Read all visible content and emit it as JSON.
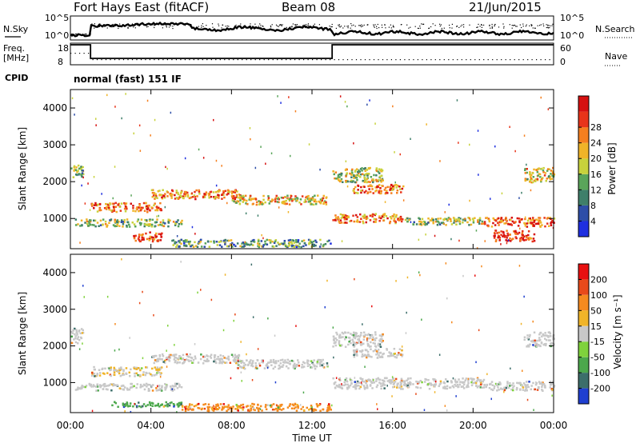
{
  "header": {
    "title": "Fort Hays East (fitACF)",
    "beam": "Beam 08",
    "date": "21/Jun/2015"
  },
  "top_panel": {
    "left_label_1": "N.Sky",
    "left_label_2": "Freq.",
    "left_label_2_unit": "[MHz]",
    "left_label_3": "CPID",
    "right_label_1": "N.Search",
    "right_label_2": "Nave",
    "nsky_ticks": [
      "10^5",
      "10^0"
    ],
    "freq_ticks": [
      "18",
      "8"
    ],
    "nsearch_ticks": [
      "10^5",
      "10^0"
    ],
    "nave_ticks": [
      "60",
      "0"
    ],
    "cpid_text": "normal (fast) 151 IF"
  },
  "chart_data": [
    {
      "type": "heatmap",
      "name": "power",
      "ylabel": "Slant Range [km]",
      "yticks": [
        "1000",
        "2000",
        "3000",
        "4000"
      ],
      "colorbar_label": "Power [dB]",
      "colorbar_ticks": [
        "4",
        "8",
        "12",
        "16",
        "20",
        "24",
        "28"
      ],
      "colorbar_colors": [
        "#1f2fe0",
        "#2e4ea8",
        "#3f7f6a",
        "#5aa55a",
        "#c8d23c",
        "#f0b428",
        "#f57f1f",
        "#e8341a",
        "#d61010"
      ],
      "regions": [
        {
          "t": [
            0.0,
            0.6
          ],
          "r": [
            2100,
            2500
          ],
          "level": 0.45
        },
        {
          "t": [
            1.0,
            4.5
          ],
          "r": [
            1200,
            1450
          ],
          "level": 0.75
        },
        {
          "t": [
            4.0,
            8.5
          ],
          "r": [
            1550,
            1800
          ],
          "level": 0.7
        },
        {
          "t": [
            8.0,
            12.8
          ],
          "r": [
            1400,
            1650
          ],
          "level": 0.6
        },
        {
          "t": [
            0.2,
            5.5
          ],
          "r": [
            800,
            1000
          ],
          "level": 0.45
        },
        {
          "t": [
            5.0,
            12.9
          ],
          "r": [
            250,
            450
          ],
          "level": 0.35
        },
        {
          "t": [
            3.0,
            4.5
          ],
          "r": [
            400,
            650
          ],
          "level": 0.85
        },
        {
          "t": [
            13.0,
            15.5
          ],
          "r": [
            2000,
            2400
          ],
          "level": 0.5
        },
        {
          "t": [
            14.0,
            16.5
          ],
          "r": [
            1700,
            1950
          ],
          "level": 0.75
        },
        {
          "t": [
            13.0,
            16.5
          ],
          "r": [
            900,
            1150
          ],
          "level": 0.7
        },
        {
          "t": [
            16.5,
            20.5
          ],
          "r": [
            850,
            1050
          ],
          "level": 0.45
        },
        {
          "t": [
            20.5,
            24.0
          ],
          "r": [
            800,
            1050
          ],
          "level": 0.8
        },
        {
          "t": [
            21.0,
            23.0
          ],
          "r": [
            400,
            700
          ],
          "level": 0.9
        },
        {
          "t": [
            22.5,
            24.0
          ],
          "r": [
            2000,
            2400
          ],
          "level": 0.55
        }
      ]
    },
    {
      "type": "heatmap",
      "name": "velocity",
      "ylabel": "Slant Range [km]",
      "yticks": [
        "1000",
        "2000",
        "3000",
        "4000"
      ],
      "colorbar_label": "Velocity [m s⁻¹]",
      "colorbar_ticks": [
        "200",
        "100",
        "50",
        "15",
        "-15",
        "-50",
        "-100",
        "-200"
      ],
      "colorbar_colors": [
        "#1f3fd0",
        "#3c6e6a",
        "#4ca84c",
        "#7fd23c",
        "#c8c8c8",
        "#f0b428",
        "#f58a1f",
        "#e84a1a",
        "#e81010"
      ],
      "regions": [
        {
          "t": [
            0.0,
            0.6
          ],
          "r": [
            2100,
            2500
          ],
          "level": 0.5
        },
        {
          "t": [
            1.0,
            4.5
          ],
          "r": [
            1200,
            1450
          ],
          "level": 0.55
        },
        {
          "t": [
            4.0,
            8.5
          ],
          "r": [
            1550,
            1800
          ],
          "level": 0.5
        },
        {
          "t": [
            8.0,
            12.8
          ],
          "r": [
            1400,
            1650
          ],
          "level": 0.5
        },
        {
          "t": [
            0.2,
            5.5
          ],
          "r": [
            800,
            1000
          ],
          "level": 0.5
        },
        {
          "t": [
            2.0,
            5.5
          ],
          "r": [
            350,
            500
          ],
          "level": 0.25
        },
        {
          "t": [
            5.5,
            12.9
          ],
          "r": [
            250,
            450
          ],
          "level": 0.7
        },
        {
          "t": [
            13.0,
            15.5
          ],
          "r": [
            2000,
            2400
          ],
          "level": 0.5
        },
        {
          "t": [
            14.0,
            16.5
          ],
          "r": [
            1700,
            1950
          ],
          "level": 0.5
        },
        {
          "t": [
            13.0,
            20.5
          ],
          "r": [
            850,
            1150
          ],
          "level": 0.5
        },
        {
          "t": [
            20.5,
            24.0
          ],
          "r": [
            800,
            1050
          ],
          "level": 0.5
        },
        {
          "t": [
            22.5,
            24.0
          ],
          "r": [
            2000,
            2400
          ],
          "level": 0.5
        }
      ]
    }
  ],
  "x_axis": {
    "label": "Time UT",
    "ticks": [
      "00:00",
      "04:00",
      "08:00",
      "12:00",
      "16:00",
      "20:00",
      "00:00"
    ],
    "range": [
      0,
      24
    ]
  },
  "y_range": [
    180,
    4500
  ]
}
